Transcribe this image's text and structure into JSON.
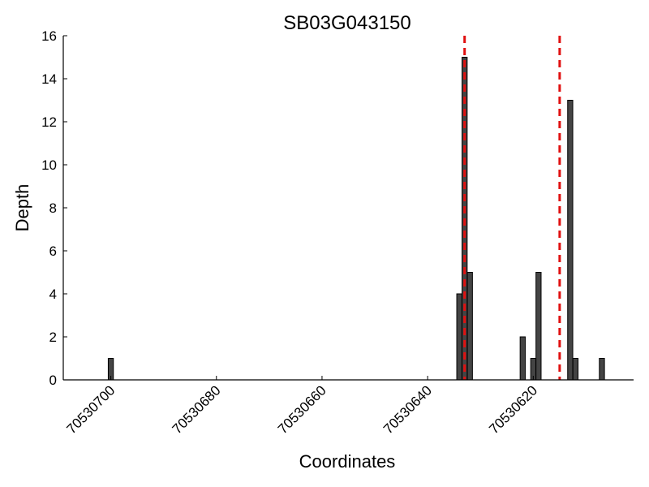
{
  "chart_data": {
    "type": "bar",
    "title": "SB03G043150",
    "xlabel": "Coordinates",
    "ylabel": "Depth",
    "xlim": [
      70530709,
      70530601
    ],
    "ylim": [
      0,
      16
    ],
    "x_reversed": true,
    "xticks": [
      70530700,
      70530680,
      70530660,
      70530640,
      70530620
    ],
    "yticks": [
      0,
      2,
      4,
      6,
      8,
      10,
      12,
      14,
      16
    ],
    "bar_color": "#444444",
    "marker_color": "#e01010",
    "grid": false,
    "x": [
      70530700,
      70530634,
      70530633,
      70530632,
      70530622,
      70530620,
      70530619,
      70530613,
      70530612,
      70530611,
      70530607
    ],
    "values": [
      1,
      4,
      15,
      5,
      2,
      1,
      5,
      13,
      1,
      0,
      1
    ],
    "markers": [
      70530633,
      70530615
    ]
  }
}
